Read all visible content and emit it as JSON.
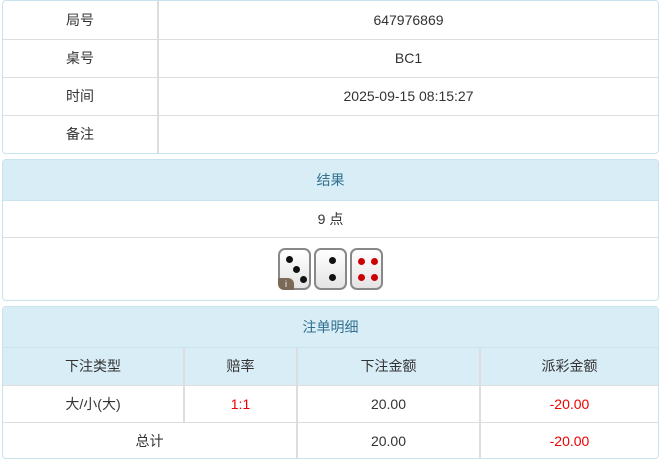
{
  "info": {
    "rows": [
      {
        "label": "局号",
        "value": "647976869"
      },
      {
        "label": "桌号",
        "value": "BC1"
      },
      {
        "label": "时间",
        "value": "2025-09-15 08:15:27"
      },
      {
        "label": "备注",
        "value": ""
      }
    ]
  },
  "result": {
    "title": "结果",
    "points": "9 点",
    "dice": [
      3,
      2,
      4
    ],
    "info_badge": "i"
  },
  "bets": {
    "title": "注单明细",
    "headers": [
      "下注类型",
      "赔率",
      "下注金额",
      "派彩金额"
    ],
    "rows": [
      {
        "type": "大/小(大)",
        "odds": "1:1",
        "amount": "20.00",
        "payout": "-20.00"
      }
    ],
    "total": {
      "label": "总计",
      "amount": "20.00",
      "payout": "-20.00"
    },
    "colors": {
      "odds": "#ee0000",
      "negative": "#ee0000",
      "header_bg": "#d9edf7"
    }
  }
}
